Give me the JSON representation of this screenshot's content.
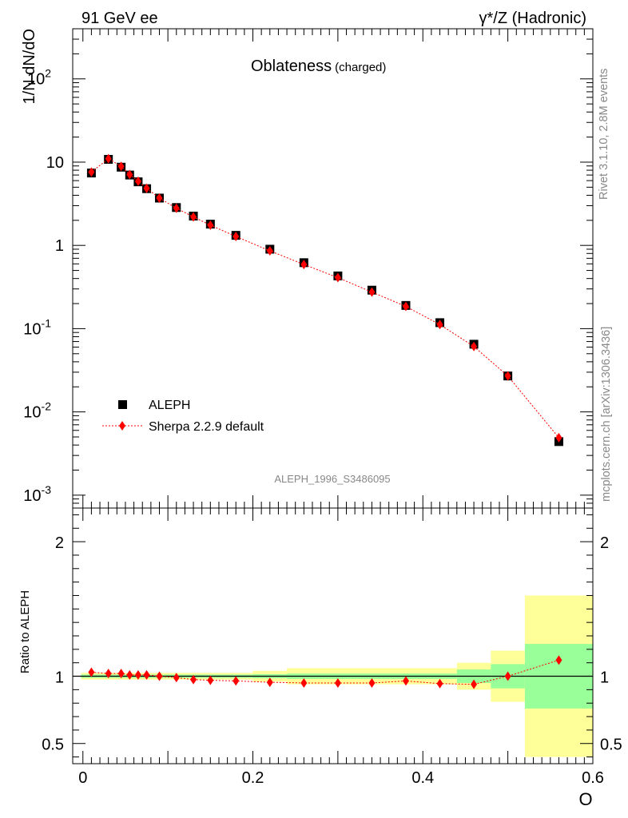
{
  "header": {
    "left_label": "91 GeV ee",
    "right_label": "γ*/Z (Hadronic)"
  },
  "side_labels": {
    "rivet": "Rivet 3.1.10,  2.8M events",
    "mcplots": "mcplots.cern.ch [arXiv:1306.3436]"
  },
  "watermark": "ALEPH_1996_S3486095",
  "main_title": "Oblateness",
  "main_title_sub": "(charged)",
  "chart_data": [
    {
      "type": "scatter",
      "panel": "main",
      "ylabel": "1/N dN/dO",
      "log_y": true,
      "ylim": [
        0.0007,
        400
      ],
      "y_ticks": [
        {
          "value": 0.001,
          "base": "10",
          "exp": "-3"
        },
        {
          "value": 0.01,
          "base": "10",
          "exp": "-2"
        },
        {
          "value": 0.1,
          "base": "10",
          "exp": "-1"
        },
        {
          "value": 1,
          "base": "1",
          "exp": ""
        },
        {
          "value": 10,
          "base": "10",
          "exp": ""
        },
        {
          "value": 100,
          "base": "10",
          "exp": "2"
        }
      ],
      "legend": [
        {
          "name": "ALEPH",
          "marker": "square",
          "color": "#000000"
        },
        {
          "name": "Sherpa 2.2.9 default",
          "marker": "diamond",
          "color": "#ff0000"
        }
      ],
      "series": [
        {
          "name": "ALEPH",
          "x": [
            0.01,
            0.03,
            0.045,
            0.055,
            0.065,
            0.075,
            0.09,
            0.11,
            0.13,
            0.15,
            0.18,
            0.22,
            0.26,
            0.3,
            0.34,
            0.38,
            0.42,
            0.46,
            0.5,
            0.56
          ],
          "y": [
            7.4,
            10.8,
            8.7,
            7.0,
            5.8,
            4.8,
            3.7,
            2.85,
            2.25,
            1.8,
            1.32,
            0.9,
            0.62,
            0.43,
            0.29,
            0.19,
            0.118,
            0.065,
            0.027,
            0.0044
          ]
        },
        {
          "name": "Sherpa 2.2.9 default",
          "x": [
            0.01,
            0.03,
            0.045,
            0.055,
            0.065,
            0.075,
            0.09,
            0.11,
            0.13,
            0.15,
            0.18,
            0.22,
            0.26,
            0.3,
            0.34,
            0.38,
            0.42,
            0.46,
            0.5,
            0.56
          ],
          "y": [
            7.6,
            11.0,
            8.9,
            7.1,
            5.9,
            4.85,
            3.7,
            2.8,
            2.2,
            1.75,
            1.28,
            0.86,
            0.59,
            0.41,
            0.275,
            0.185,
            0.112,
            0.061,
            0.027,
            0.0049
          ]
        }
      ]
    },
    {
      "type": "scatter",
      "panel": "ratio",
      "ylabel": "Ratio to ALEPH",
      "xlabel": "O",
      "xlim": [
        -0.012,
        0.6
      ],
      "ylim": [
        0.35,
        2.25
      ],
      "x_ticks": [
        "0",
        "0.2",
        "0.4",
        "0.6"
      ],
      "x_tick_values": [
        0,
        0.2,
        0.4,
        0.6
      ],
      "y_ticks": [
        "0.5",
        "1",
        "2"
      ],
      "y_tick_values": [
        0.5,
        1,
        2
      ],
      "bands": [
        {
          "x0": -0.002,
          "x1": 0.2,
          "stat": 0.012,
          "tot": 0.025
        },
        {
          "x0": 0.2,
          "x1": 0.24,
          "stat": 0.015,
          "tot": 0.04
        },
        {
          "x0": 0.24,
          "x1": 0.44,
          "stat": 0.02,
          "tot": 0.06
        },
        {
          "x0": 0.44,
          "x1": 0.48,
          "stat": 0.05,
          "tot": 0.1
        },
        {
          "x0": 0.48,
          "x1": 0.52,
          "stat": 0.09,
          "tot": 0.19
        },
        {
          "x0": 0.52,
          "x1": 0.6,
          "stat": 0.24,
          "tot": 0.6
        }
      ],
      "series": [
        {
          "name": "Sherpa 2.2.9 default",
          "x": [
            0.01,
            0.03,
            0.045,
            0.055,
            0.065,
            0.075,
            0.09,
            0.11,
            0.13,
            0.15,
            0.18,
            0.22,
            0.26,
            0.3,
            0.34,
            0.38,
            0.42,
            0.46,
            0.5,
            0.56
          ],
          "y": [
            1.03,
            1.02,
            1.02,
            1.01,
            1.01,
            1.01,
            1.0,
            0.99,
            0.975,
            0.97,
            0.965,
            0.955,
            0.95,
            0.95,
            0.95,
            0.965,
            0.945,
            0.94,
            1.0,
            1.12
          ]
        }
      ]
    }
  ],
  "colors": {
    "data": "#000000",
    "mc": "#ff0000",
    "band_stat": "#99ff99",
    "band_total": "#ffff99"
  }
}
